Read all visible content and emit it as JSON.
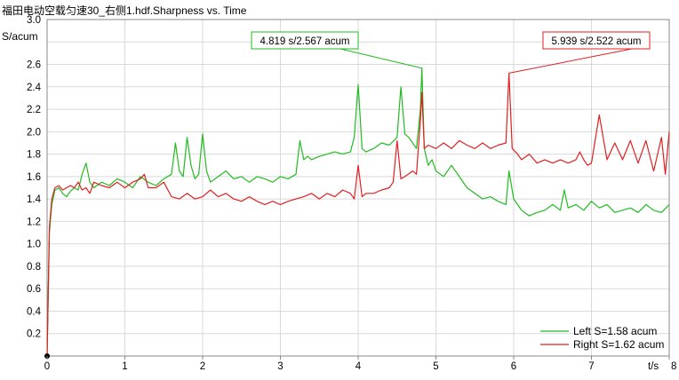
{
  "chart_data": {
    "type": "line",
    "title": "福田电动空载匀速30_右侧1.hdf.Sharpness vs. Time",
    "ylabel": "S/acum",
    "xlabel": "t/s",
    "xlim": [
      0,
      8
    ],
    "ylim": [
      0,
      3.0
    ],
    "xticks": [
      "0",
      "1",
      "2",
      "3",
      "4",
      "5",
      "6",
      "7",
      "8"
    ],
    "yticks": [
      "0.2",
      "0.4",
      "0.6",
      "0.8",
      "1.0",
      "1.2",
      "1.4",
      "1.6",
      "1.8",
      "2.0",
      "2.2",
      "2.4",
      "2.6",
      "3.0"
    ],
    "grid": true,
    "legend_position": "bottom-right",
    "series": [
      {
        "name": "Left S=1.58 acum",
        "color": "#22bb22",
        "x": [
          0,
          0.03,
          0.06,
          0.1,
          0.15,
          0.2,
          0.25,
          0.3,
          0.35,
          0.4,
          0.45,
          0.5,
          0.55,
          0.6,
          0.7,
          0.8,
          0.9,
          1.0,
          1.1,
          1.2,
          1.3,
          1.4,
          1.5,
          1.6,
          1.65,
          1.7,
          1.75,
          1.8,
          1.85,
          1.9,
          1.95,
          2.0,
          2.05,
          2.1,
          2.2,
          2.3,
          2.4,
          2.5,
          2.6,
          2.7,
          2.8,
          2.9,
          3.0,
          3.1,
          3.2,
          3.25,
          3.3,
          3.35,
          3.4,
          3.5,
          3.6,
          3.7,
          3.8,
          3.9,
          3.95,
          4.0,
          4.05,
          4.1,
          4.2,
          4.3,
          4.4,
          4.5,
          4.55,
          4.6,
          4.65,
          4.7,
          4.75,
          4.8,
          4.819,
          4.85,
          4.9,
          4.95,
          5.0,
          5.1,
          5.2,
          5.3,
          5.4,
          5.5,
          5.6,
          5.7,
          5.8,
          5.9,
          5.939,
          6.0,
          6.1,
          6.2,
          6.3,
          6.4,
          6.5,
          6.6,
          6.65,
          6.7,
          6.8,
          6.9,
          7.0,
          7.1,
          7.2,
          7.3,
          7.4,
          7.5,
          7.6,
          7.7,
          7.8,
          7.9,
          8.0
        ],
        "y": [
          0.0,
          1.1,
          1.35,
          1.48,
          1.5,
          1.45,
          1.42,
          1.47,
          1.5,
          1.48,
          1.62,
          1.72,
          1.55,
          1.5,
          1.55,
          1.52,
          1.58,
          1.55,
          1.5,
          1.6,
          1.55,
          1.52,
          1.58,
          1.62,
          1.9,
          1.65,
          1.6,
          1.95,
          1.7,
          1.58,
          1.62,
          1.98,
          1.65,
          1.55,
          1.6,
          1.65,
          1.58,
          1.6,
          1.55,
          1.6,
          1.58,
          1.55,
          1.6,
          1.58,
          1.62,
          1.92,
          1.75,
          1.78,
          1.75,
          1.78,
          1.8,
          1.82,
          1.8,
          1.82,
          1.95,
          2.42,
          1.85,
          1.82,
          1.85,
          1.9,
          1.88,
          1.95,
          2.4,
          1.98,
          1.95,
          1.9,
          1.85,
          2.2,
          2.567,
          1.85,
          1.7,
          1.75,
          1.65,
          1.6,
          1.7,
          1.6,
          1.5,
          1.45,
          1.4,
          1.42,
          1.38,
          1.35,
          1.65,
          1.4,
          1.3,
          1.25,
          1.28,
          1.3,
          1.35,
          1.3,
          1.48,
          1.32,
          1.35,
          1.3,
          1.38,
          1.32,
          1.35,
          1.28,
          1.3,
          1.32,
          1.28,
          1.35,
          1.3,
          1.28,
          1.35
        ]
      },
      {
        "name": "Right S=1.62 acum",
        "color": "#e02020",
        "x": [
          0,
          0.03,
          0.06,
          0.1,
          0.15,
          0.2,
          0.25,
          0.3,
          0.35,
          0.4,
          0.45,
          0.5,
          0.55,
          0.6,
          0.7,
          0.8,
          0.9,
          1.0,
          1.1,
          1.2,
          1.25,
          1.3,
          1.4,
          1.5,
          1.6,
          1.7,
          1.8,
          1.9,
          2.0,
          2.1,
          2.2,
          2.3,
          2.4,
          2.5,
          2.6,
          2.7,
          2.8,
          2.9,
          3.0,
          3.1,
          3.2,
          3.3,
          3.4,
          3.5,
          3.6,
          3.7,
          3.8,
          3.9,
          3.95,
          4.0,
          4.05,
          4.1,
          4.2,
          4.3,
          4.4,
          4.45,
          4.5,
          4.55,
          4.6,
          4.7,
          4.75,
          4.8,
          4.819,
          4.85,
          4.9,
          5.0,
          5.1,
          5.2,
          5.3,
          5.4,
          5.5,
          5.6,
          5.7,
          5.8,
          5.9,
          5.939,
          5.98,
          6.05,
          6.1,
          6.2,
          6.3,
          6.4,
          6.5,
          6.6,
          6.7,
          6.8,
          6.85,
          6.9,
          6.95,
          7.0,
          7.1,
          7.2,
          7.3,
          7.4,
          7.5,
          7.6,
          7.7,
          7.8,
          7.9,
          7.95,
          8.0
        ],
        "y": [
          0.0,
          1.15,
          1.4,
          1.5,
          1.52,
          1.48,
          1.5,
          1.52,
          1.5,
          1.55,
          1.48,
          1.5,
          1.45,
          1.55,
          1.52,
          1.5,
          1.55,
          1.5,
          1.55,
          1.58,
          1.62,
          1.5,
          1.5,
          1.55,
          1.42,
          1.4,
          1.45,
          1.4,
          1.42,
          1.48,
          1.42,
          1.45,
          1.4,
          1.38,
          1.42,
          1.38,
          1.35,
          1.38,
          1.35,
          1.38,
          1.4,
          1.42,
          1.45,
          1.4,
          1.45,
          1.42,
          1.48,
          1.45,
          1.4,
          1.7,
          1.42,
          1.45,
          1.45,
          1.48,
          1.5,
          1.55,
          1.92,
          1.58,
          1.6,
          1.65,
          1.62,
          2.1,
          2.35,
          1.85,
          1.88,
          1.85,
          1.9,
          1.85,
          1.92,
          1.88,
          1.85,
          1.9,
          1.85,
          1.88,
          1.9,
          2.522,
          1.85,
          1.8,
          1.75,
          1.8,
          1.72,
          1.75,
          1.72,
          1.75,
          1.72,
          1.75,
          1.82,
          1.75,
          1.7,
          1.72,
          2.15,
          1.75,
          1.9,
          1.75,
          1.92,
          1.72,
          1.92,
          1.65,
          1.95,
          1.62,
          2.0
        ]
      }
    ],
    "annotations": [
      {
        "text": "4.819 s/2.567 acum",
        "x": 4.819,
        "y": 2.567,
        "color": "#22bb22"
      },
      {
        "text": "5.939 s/2.522 acum",
        "x": 5.939,
        "y": 2.522,
        "color": "#e02020"
      }
    ]
  }
}
